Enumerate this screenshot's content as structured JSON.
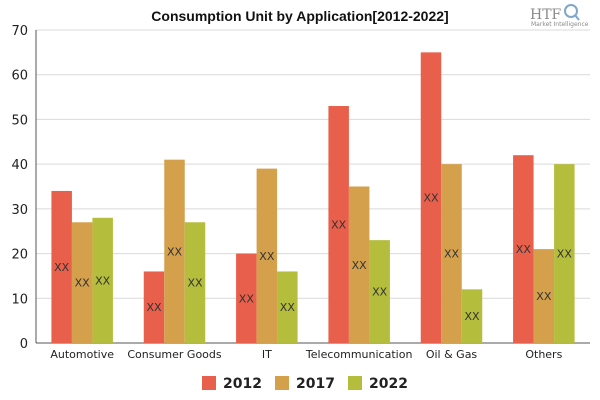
{
  "chart_data": {
    "type": "bar",
    "title": "Consumption Unit by  Application[2012-2022]",
    "categories": [
      "Automotive",
      "Consumer Goods",
      "IT",
      "Telecommunication",
      "Oil & Gas",
      "Others"
    ],
    "series": [
      {
        "name": "2012",
        "color": "#e8604c",
        "values": [
          34,
          16,
          20,
          53,
          65,
          42
        ]
      },
      {
        "name": "2017",
        "color": "#d4a04c",
        "values": [
          27,
          41,
          39,
          35,
          40,
          21
        ]
      },
      {
        "name": "2022",
        "color": "#b5bd3c",
        "values": [
          28,
          27,
          16,
          23,
          12,
          40
        ]
      }
    ],
    "ylim": [
      0,
      70
    ],
    "yticks": [
      0,
      10,
      20,
      30,
      40,
      50,
      60,
      70
    ],
    "data_label": "XX",
    "legend_position": "bottom",
    "grid": "horizontal"
  },
  "logo": {
    "main": "HTF",
    "sub": "Market Intelligence"
  }
}
